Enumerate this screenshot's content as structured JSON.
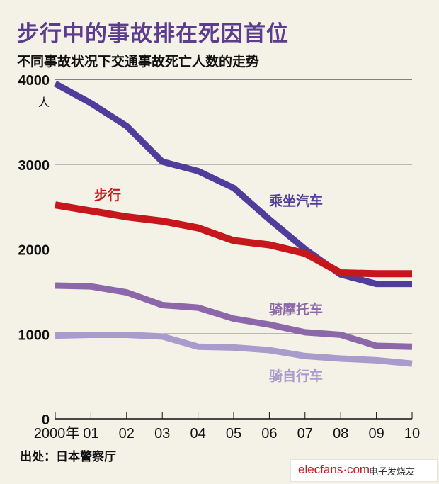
{
  "title": "步行中的事故排在死因首位",
  "subtitle": "不同事故状况下交通事故死亡人数的走势",
  "source": "出处：日本警察厅",
  "watermark": {
    "site": "elecfans·com",
    "name": "电子发烧友"
  },
  "chart_data": {
    "type": "line",
    "title": "步行中的事故排在死因首位",
    "subtitle": "不同事故状况下交通事故死亡人数的走势",
    "ylabel": "人",
    "xlabel": "",
    "x": [
      "2000年",
      "01",
      "02",
      "03",
      "04",
      "05",
      "06",
      "07",
      "08",
      "09",
      "10"
    ],
    "ylim": [
      0,
      4000
    ],
    "yticks": [
      0,
      1000,
      2000,
      3000,
      4000
    ],
    "grid": true,
    "series": [
      {
        "name": "乘坐汽车",
        "color": "#4f3d9c",
        "values": [
          3950,
          3720,
          3450,
          3030,
          2920,
          2720,
          2350,
          2000,
          1700,
          1590,
          1590
        ]
      },
      {
        "name": "步行",
        "color": "#c8161d",
        "values": [
          2520,
          2450,
          2380,
          2330,
          2250,
          2100,
          2050,
          1950,
          1720,
          1710,
          1710
        ]
      },
      {
        "name": "骑摩托车",
        "color": "#8c68aa",
        "values": [
          1570,
          1560,
          1490,
          1340,
          1310,
          1180,
          1110,
          1020,
          990,
          860,
          850
        ]
      },
      {
        "name": "骑自行车",
        "color": "#a99bcc",
        "values": [
          980,
          990,
          990,
          970,
          850,
          840,
          810,
          740,
          710,
          690,
          650
        ]
      }
    ]
  }
}
